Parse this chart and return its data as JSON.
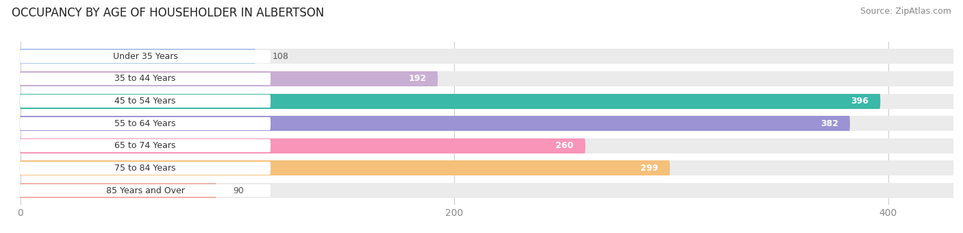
{
  "title": "OCCUPANCY BY AGE OF HOUSEHOLDER IN ALBERTSON",
  "source": "Source: ZipAtlas.com",
  "categories": [
    "Under 35 Years",
    "35 to 44 Years",
    "45 to 54 Years",
    "55 to 64 Years",
    "65 to 74 Years",
    "75 to 84 Years",
    "85 Years and Over"
  ],
  "values": [
    108,
    192,
    396,
    382,
    260,
    299,
    90
  ],
  "bar_colors": [
    "#aec6e8",
    "#c9aed4",
    "#3ab8a8",
    "#9b93d4",
    "#f895b8",
    "#f5c07a",
    "#f0b0a8"
  ],
  "bar_bg_colors": [
    "#ebebeb",
    "#ebebeb",
    "#ebebeb",
    "#ebebeb",
    "#ebebeb",
    "#ebebeb",
    "#ebebeb"
  ],
  "xlim": [
    0,
    430
  ],
  "xticks": [
    0,
    200,
    400
  ],
  "value_threshold": 150,
  "label_color_outside": "#555555",
  "label_color_inside": "#ffffff",
  "background_color": "#ffffff",
  "title_fontsize": 12,
  "source_fontsize": 9,
  "bar_height": 0.68,
  "label_pill_color": "#ffffff"
}
